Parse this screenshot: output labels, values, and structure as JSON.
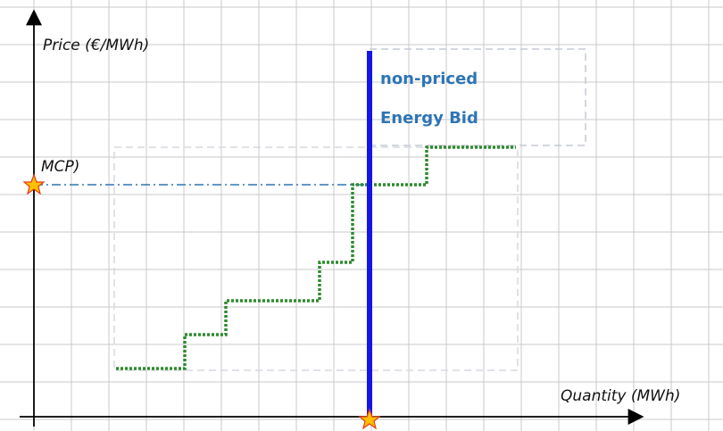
{
  "axes": {
    "y_label": "Price (€/MWh)",
    "x_label": "Quantity (MWh)"
  },
  "mcp_label": "MCP)",
  "bid_label": {
    "line1": "non-priced",
    "line2": "Energy Bid"
  }
}
